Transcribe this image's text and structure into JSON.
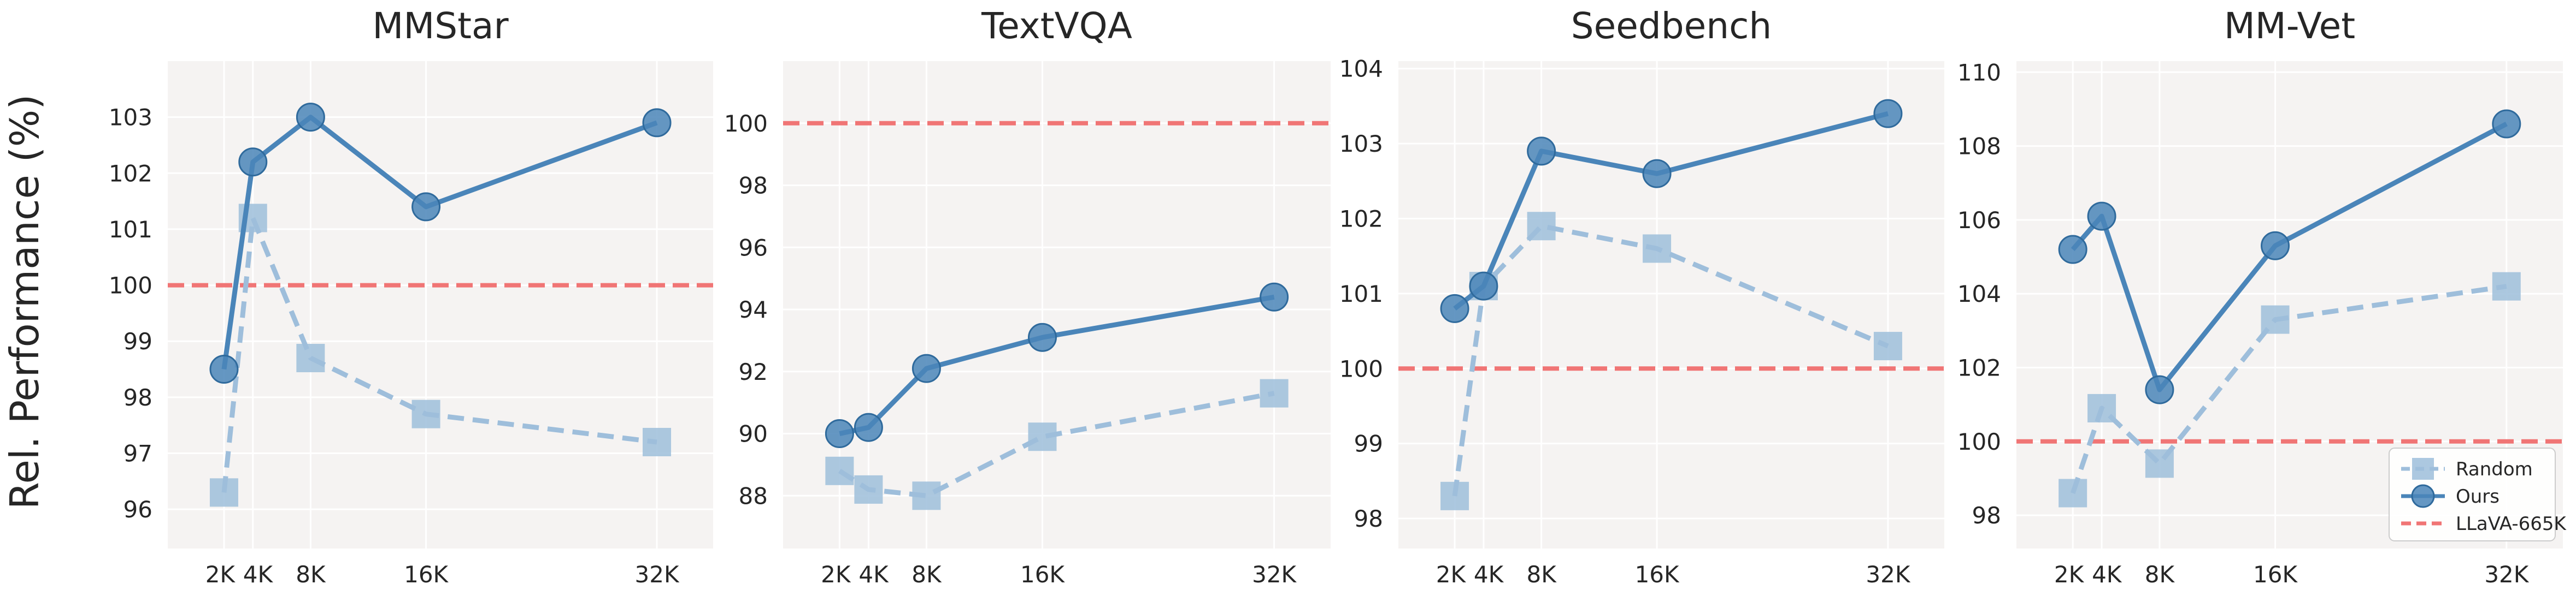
{
  "figure": {
    "ylabel": "Rel. Performance (%)",
    "legend": {
      "placement": "lower-right",
      "panel": 3,
      "entries": [
        "Random",
        "Ours",
        "LLaVA-665K"
      ]
    }
  },
  "colors": {
    "ours": "#4a85b9",
    "random": "#9ebedb",
    "baseline": "#f07575",
    "panel_bg": "#f5f3f2",
    "grid": "#ffffff"
  },
  "chart_data": [
    {
      "type": "line",
      "title": "MMStar",
      "x": [
        2000,
        4000,
        8000,
        16000,
        32000
      ],
      "xtick_values": [
        2000,
        4000,
        8000,
        16000,
        32000
      ],
      "xtick_labels": [
        "2K",
        "4K",
        "8K",
        "16K",
        "32K"
      ],
      "xlim": [
        -1900,
        35900
      ],
      "ylim": [
        95.3,
        104.0
      ],
      "yticks": [
        96,
        97,
        98,
        99,
        100,
        101,
        102,
        103
      ],
      "baseline": 100,
      "series": [
        {
          "name": "Ours",
          "values": [
            98.5,
            102.2,
            103.0,
            101.4,
            102.9
          ]
        },
        {
          "name": "Random",
          "values": [
            96.3,
            101.2,
            98.7,
            97.7,
            97.2
          ]
        }
      ]
    },
    {
      "type": "line",
      "title": "TextVQA",
      "x": [
        2000,
        4000,
        8000,
        16000,
        32000
      ],
      "xtick_values": [
        2000,
        4000,
        8000,
        16000,
        32000
      ],
      "xtick_labels": [
        "2K",
        "4K",
        "8K",
        "16K",
        "32K"
      ],
      "xlim": [
        -1900,
        35900
      ],
      "ylim": [
        86.3,
        102.0
      ],
      "yticks": [
        88,
        90,
        92,
        94,
        96,
        98,
        100
      ],
      "baseline": 100,
      "series": [
        {
          "name": "Ours",
          "values": [
            90.0,
            90.2,
            92.1,
            93.1,
            94.4
          ]
        },
        {
          "name": "Random",
          "values": [
            88.8,
            88.2,
            88.0,
            89.9,
            91.3
          ]
        }
      ]
    },
    {
      "type": "line",
      "title": "Seedbench",
      "x": [
        2000,
        4000,
        8000,
        16000,
        32000
      ],
      "xtick_values": [
        2000,
        4000,
        8000,
        16000,
        32000
      ],
      "xtick_labels": [
        "2K",
        "4K",
        "8K",
        "16K",
        "32K"
      ],
      "xlim": [
        -1900,
        35900
      ],
      "ylim": [
        97.6,
        104.1
      ],
      "yticks": [
        98,
        99,
        100,
        101,
        102,
        103,
        104
      ],
      "baseline": 100,
      "series": [
        {
          "name": "Ours",
          "values": [
            100.8,
            101.1,
            102.9,
            102.6,
            103.4
          ]
        },
        {
          "name": "Random",
          "values": [
            98.3,
            101.1,
            101.9,
            101.6,
            100.3
          ]
        }
      ]
    },
    {
      "type": "line",
      "title": "MM-Vet",
      "x": [
        2000,
        4000,
        8000,
        16000,
        32000
      ],
      "xtick_values": [
        2000,
        4000,
        8000,
        16000,
        32000
      ],
      "xtick_labels": [
        "2K",
        "4K",
        "8K",
        "16K",
        "32K"
      ],
      "xlim": [
        -1900,
        35900
      ],
      "ylim": [
        97.1,
        110.3
      ],
      "yticks": [
        98,
        100,
        102,
        104,
        106,
        108,
        110
      ],
      "baseline": 100,
      "series": [
        {
          "name": "Ours",
          "values": [
            105.2,
            106.1,
            101.4,
            105.3,
            108.6
          ]
        },
        {
          "name": "Random",
          "values": [
            98.6,
            100.9,
            99.4,
            103.3,
            104.2
          ]
        }
      ]
    }
  ]
}
